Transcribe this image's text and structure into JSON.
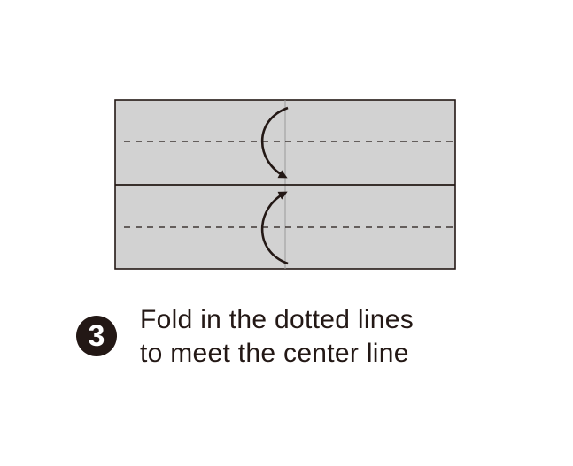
{
  "step": {
    "number": "3",
    "lines": [
      "Fold in the dotted lines",
      "to meet the center line"
    ]
  },
  "colors": {
    "paper": "#d2d2d2",
    "ink": "#231815",
    "crease": "#9a9a9a",
    "background": "#ffffff"
  },
  "icons": {
    "top_arrow": "curved-arrow-down-icon",
    "bottom_arrow": "curved-arrow-up-icon"
  }
}
